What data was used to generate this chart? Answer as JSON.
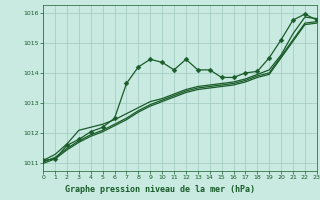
{
  "title": "Graphe pression niveau de la mer (hPa)",
  "bg_color": "#c8eae0",
  "plot_bg_color": "#c8eae0",
  "footer_bg_color": "#4a9060",
  "grid_color": "#a0c8c0",
  "line_color": "#1a5c2a",
  "tick_color": "#1a5c2a",
  "title_color": "#1a5c2a",
  "footer_text_color": "#1a5c2a",
  "xlim": [
    0,
    23
  ],
  "ylim": [
    1010.75,
    1016.25
  ],
  "yticks": [
    1011,
    1012,
    1013,
    1014,
    1015,
    1016
  ],
  "xticks": [
    0,
    1,
    2,
    3,
    4,
    5,
    6,
    7,
    8,
    9,
    10,
    11,
    12,
    13,
    14,
    15,
    16,
    17,
    18,
    19,
    20,
    21,
    22,
    23
  ],
  "series": [
    [
      1011.1,
      1011.15,
      1011.6,
      1011.8,
      1012.05,
      1012.2,
      1012.5,
      1013.65,
      1014.2,
      1014.45,
      1014.35,
      1014.1,
      1014.45,
      1014.1,
      1014.1,
      1013.85,
      1013.85,
      1014.0,
      1014.05,
      1014.5,
      1015.1,
      1015.75,
      1015.95,
      1015.75
    ],
    [
      1011.1,
      1011.3,
      1011.65,
      1012.1,
      1012.2,
      1012.3,
      1012.45,
      1012.65,
      1012.85,
      1013.05,
      1013.15,
      1013.3,
      1013.45,
      1013.55,
      1013.6,
      1013.65,
      1013.7,
      1013.8,
      1013.95,
      1014.1,
      1014.6,
      1015.3,
      1015.85,
      1015.8
    ],
    [
      1011.05,
      1011.2,
      1011.5,
      1011.75,
      1011.95,
      1012.1,
      1012.3,
      1012.5,
      1012.75,
      1012.95,
      1013.1,
      1013.25,
      1013.4,
      1013.5,
      1013.55,
      1013.6,
      1013.65,
      1013.75,
      1013.9,
      1014.0,
      1014.55,
      1015.1,
      1015.65,
      1015.7
    ],
    [
      1011.0,
      1011.15,
      1011.45,
      1011.7,
      1011.9,
      1012.05,
      1012.25,
      1012.45,
      1012.7,
      1012.9,
      1013.05,
      1013.2,
      1013.35,
      1013.45,
      1013.5,
      1013.55,
      1013.6,
      1013.7,
      1013.85,
      1013.95,
      1014.5,
      1015.05,
      1015.6,
      1015.65
    ]
  ],
  "linewidth": 0.9,
  "markersize": 2.5
}
